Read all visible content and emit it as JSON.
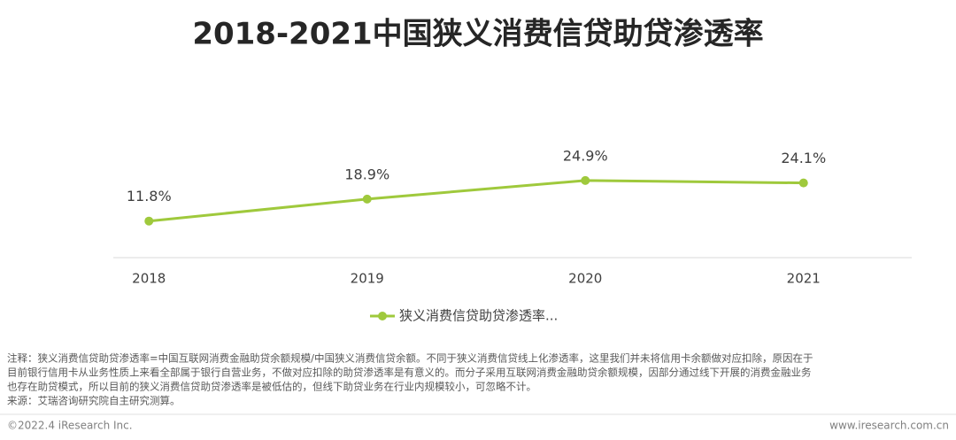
{
  "chart_data": {
    "type": "line",
    "title": "2018-2021中国狭义消费信贷助贷渗透率",
    "categories": [
      "2018",
      "2019",
      "2020",
      "2021"
    ],
    "series": [
      {
        "name": "狭义消费信贷助贷渗透率...",
        "color": "#9fc93c",
        "values": [
          11.8,
          18.9,
          24.9,
          24.1
        ],
        "value_labels": [
          "11.8%",
          "18.9%",
          "24.9%",
          "24.1%"
        ]
      }
    ],
    "legend": "bottom"
  },
  "notes": [
    "注释：狭义消费信贷助贷渗透率=中国互联网消费金融助贷余额规模/中国狭义消费信贷余额。不同于狭义消费信贷线上化渗透率，这里我们并未将信用卡余额做对应扣除，原因在于",
    "目前银行信用卡从业务性质上来看全部属于银行自营业务，不做对应扣除的助贷渗透率是有意义的。而分子采用互联网消费金融助贷余额规模，因部分通过线下开展的消费金融业务",
    "也存在助贷模式，所以目前的狭义消费信贷助贷渗透率是被低估的，但线下助贷业务在行业内规模较小，可忽略不计。",
    "来源：艾瑞咨询研究院自主研究测算。"
  ],
  "footer": {
    "left": "©2022.4 iResearch Inc.",
    "right": "www.iresearch.com.cn"
  }
}
